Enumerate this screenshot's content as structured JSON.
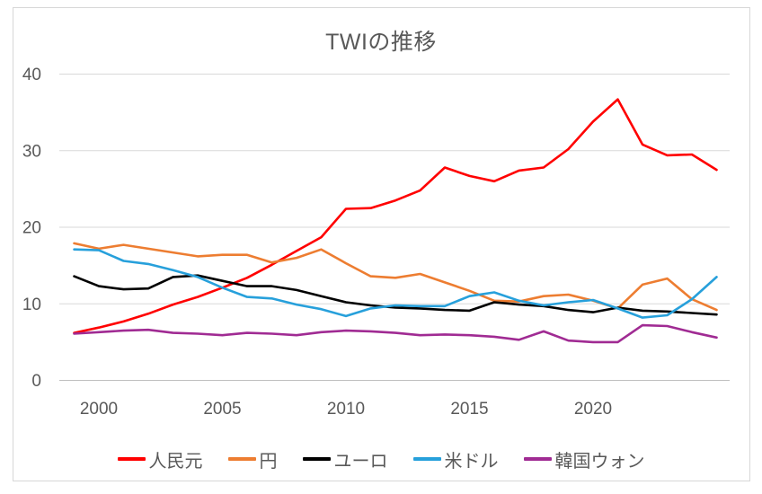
{
  "title": "TWIの推移",
  "colors": {
    "grid": "#D9D9D9",
    "axis_line": "#BFBFBF",
    "text": "#595959",
    "background": "#FFFFFF",
    "border": "#D7D7D7"
  },
  "chart_data": {
    "type": "line",
    "title": "TWIの推移",
    "xlabel": "",
    "ylabel": "",
    "ylim": [
      0,
      40
    ],
    "y_ticks": [
      0,
      10,
      20,
      30,
      40
    ],
    "x_ticks": [
      2000,
      2005,
      2010,
      2015,
      2020
    ],
    "grid": "horizontal",
    "legend_position": "bottom",
    "x": [
      1999,
      2000,
      2001,
      2002,
      2003,
      2004,
      2005,
      2006,
      2007,
      2008,
      2009,
      2010,
      2011,
      2012,
      2013,
      2014,
      2015,
      2016,
      2017,
      2018,
      2019,
      2020,
      2021,
      2022,
      2023,
      2024,
      2025
    ],
    "series": [
      {
        "id": "cny",
        "name": "人民元",
        "color": "#FF0000",
        "values": [
          6.2,
          6.9,
          7.7,
          8.7,
          9.9,
          10.9,
          12.1,
          13.4,
          15.1,
          16.9,
          18.7,
          22.4,
          22.5,
          23.5,
          24.8,
          27.8,
          26.7,
          26.0,
          27.4,
          27.8,
          30.2,
          33.8,
          36.7,
          30.8,
          29.4,
          29.5,
          27.5
        ]
      },
      {
        "id": "jpy",
        "name": "円",
        "color": "#ED7D31",
        "values": [
          17.9,
          17.2,
          17.7,
          17.2,
          16.7,
          16.2,
          16.4,
          16.4,
          15.4,
          16.0,
          17.1,
          15.3,
          13.6,
          13.4,
          13.9,
          12.8,
          11.7,
          10.4,
          10.3,
          11.0,
          11.2,
          10.4,
          9.4,
          12.5,
          13.3,
          10.6,
          9.2
        ]
      },
      {
        "id": "eur",
        "name": "ユーロ",
        "color": "#000000",
        "values": [
          13.6,
          12.3,
          11.9,
          12.0,
          13.5,
          13.7,
          13.0,
          12.3,
          12.3,
          11.8,
          11.0,
          10.2,
          9.8,
          9.5,
          9.4,
          9.2,
          9.1,
          10.2,
          9.9,
          9.7,
          9.2,
          8.9,
          9.5,
          9.1,
          9.0,
          8.8,
          8.6
        ]
      },
      {
        "id": "usd",
        "name": "米ドル",
        "color": "#27A0DB",
        "values": [
          17.1,
          17.0,
          15.6,
          15.2,
          14.4,
          13.5,
          12.1,
          10.9,
          10.7,
          9.9,
          9.3,
          8.4,
          9.4,
          9.8,
          9.7,
          9.7,
          11.0,
          11.5,
          10.4,
          9.8,
          10.2,
          10.5,
          9.4,
          8.2,
          8.5,
          10.6,
          13.5
        ]
      },
      {
        "id": "krw",
        "name": "韓国ウォン",
        "color": "#A02B93",
        "values": [
          6.1,
          6.3,
          6.5,
          6.6,
          6.2,
          6.1,
          5.9,
          6.2,
          6.1,
          5.9,
          6.3,
          6.5,
          6.4,
          6.2,
          5.9,
          6.0,
          5.9,
          5.7,
          5.3,
          6.4,
          5.2,
          5.0,
          5.0,
          7.2,
          7.1,
          6.3,
          5.6
        ]
      }
    ]
  }
}
